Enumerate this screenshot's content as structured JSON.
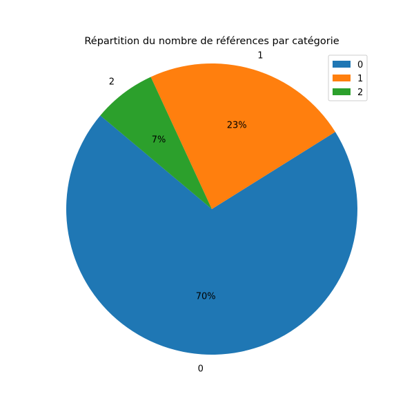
{
  "chart_data": {
    "type": "pie",
    "title": "Répartition du nombre de références par catégorie",
    "categories": [
      "0",
      "1",
      "2"
    ],
    "values": [
      70,
      23,
      7
    ],
    "percent_labels": [
      "70%",
      "23%",
      "7%"
    ],
    "colors": [
      "#1f77b4",
      "#ff7f0e",
      "#2ca02c"
    ],
    "start_angle_deg": 140,
    "legend": {
      "placement": "top-right",
      "entries": [
        "0",
        "1",
        "2"
      ]
    }
  }
}
